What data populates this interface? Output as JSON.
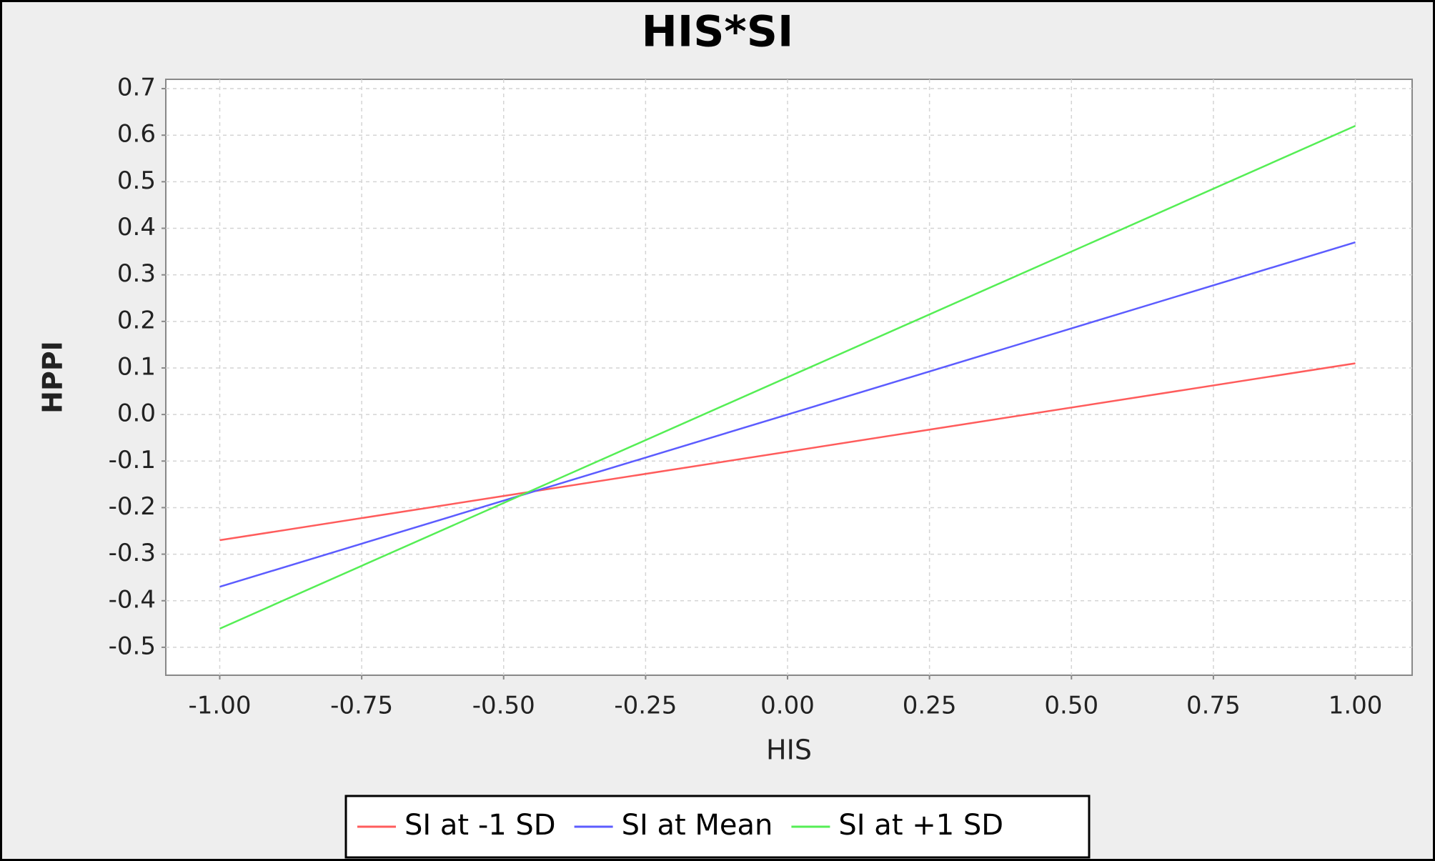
{
  "chart_data": {
    "type": "line",
    "title": "HIS*SI",
    "x_label": "HIS",
    "y_label": "HPPI",
    "x": [
      -1,
      1
    ],
    "series": [
      {
        "name": "SI at -1 SD",
        "color": "#ff5c5c",
        "values": [
          -0.27,
          0.11
        ]
      },
      {
        "name": "SI at Mean",
        "color": "#5c5cff",
        "values": [
          -0.37,
          0.37
        ]
      },
      {
        "name": "SI at +1 SD",
        "color": "#55ee55",
        "values": [
          -0.46,
          0.62
        ]
      }
    ],
    "xlim": [
      -1.095,
      1.1
    ],
    "ylim": [
      -0.56,
      0.72
    ],
    "xticks": [
      {
        "value": -1,
        "label": "-1.00"
      },
      {
        "value": -0.75,
        "label": "-0.75"
      },
      {
        "value": -0.5,
        "label": "-0.50"
      },
      {
        "value": -0.25,
        "label": "-0.25"
      },
      {
        "value": 0,
        "label": "0.00"
      },
      {
        "value": 0.25,
        "label": "0.25"
      },
      {
        "value": 0.5,
        "label": "0.50"
      },
      {
        "value": 0.75,
        "label": "0.75"
      },
      {
        "value": 1,
        "label": "1.00"
      }
    ],
    "yticks": [
      -0.5,
      -0.4,
      -0.3,
      -0.2,
      -0.1,
      {
        "value": 0,
        "label": "0.0"
      },
      0.1,
      0.2,
      0.3,
      0.4,
      0.5,
      0.6,
      0.7
    ],
    "grid": true,
    "legend": "bottom"
  }
}
